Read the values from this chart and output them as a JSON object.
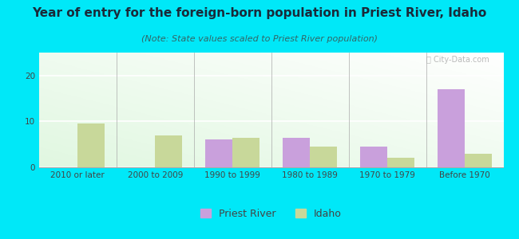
{
  "title": "Year of entry for the foreign-born population in Priest River, Idaho",
  "subtitle": "(Note: State values scaled to Priest River population)",
  "categories": [
    "2010 or later",
    "2000 to 2009",
    "1990 to 1999",
    "1980 to 1989",
    "1970 to 1979",
    "Before 1970"
  ],
  "priest_river": [
    0,
    0,
    6,
    6.5,
    4.5,
    17
  ],
  "idaho": [
    9.5,
    7,
    6.5,
    4.5,
    2,
    3
  ],
  "priest_river_color": "#c9a0dc",
  "idaho_color": "#c8d89a",
  "background_outer": "#00e8f8",
  "bar_width": 0.35,
  "ylim": [
    0,
    25
  ],
  "yticks": [
    0,
    10,
    20
  ],
  "title_fontsize": 11,
  "subtitle_fontsize": 8,
  "tick_fontsize": 7.5,
  "legend_fontsize": 9,
  "title_color": "#1a2a3a",
  "subtitle_color": "#336666",
  "tick_color": "#444444"
}
